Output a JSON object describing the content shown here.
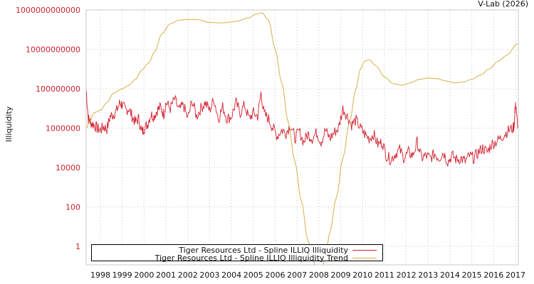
{
  "watermark": "V-Lab (2026)",
  "chart_data": {
    "type": "line",
    "title": "",
    "xlabel": "",
    "ylabel": "Illiquidity",
    "yscale": "log",
    "ylim": [
      0.1,
      1000000000000
    ],
    "xlim": [
      1997.35,
      2017.1
    ],
    "grid": true,
    "legend_position": "bottom-left inside",
    "x_ticks": [
      "1998",
      "1999",
      "2000",
      "2001",
      "2002",
      "2003",
      "2004",
      "2005",
      "2006",
      "2007",
      "2008",
      "2009",
      "2010",
      "2011",
      "2012",
      "2013",
      "2014",
      "2015",
      "2016",
      "2017"
    ],
    "y_ticks": [
      "1",
      "100",
      "10000",
      "1000000",
      "100000000",
      "10000000000",
      "1000000000000"
    ],
    "series": [
      {
        "name": "Tiger Resources Ltd - Spline ILLIQ Illiquidity",
        "color": "#d21f2e",
        "x": [
          1997.35,
          1997.45,
          1997.55,
          1997.7,
          1997.85,
          1998.0,
          1998.15,
          1998.3,
          1998.45,
          1998.6,
          1998.75,
          1998.9,
          1999.0,
          1999.15,
          1999.3,
          1999.45,
          1999.6,
          1999.75,
          1999.9,
          2000.0,
          2000.15,
          2000.3,
          2000.45,
          2000.6,
          2000.75,
          2000.9,
          2001.0,
          2001.2,
          2001.4,
          2001.6,
          2001.8,
          2002.0,
          2002.2,
          2002.4,
          2002.6,
          2002.8,
          2003.0,
          2003.2,
          2003.4,
          2003.6,
          2003.8,
          2004.0,
          2004.2,
          2004.4,
          2004.6,
          2004.8,
          2005.0,
          2005.2,
          2005.35,
          2005.5,
          2005.7,
          2005.9,
          2006.1,
          2006.3,
          2006.5,
          2006.7,
          2006.9,
          2007.1,
          2007.3,
          2007.5,
          2007.7,
          2007.9,
          2008.1,
          2008.3,
          2008.5,
          2008.7,
          2008.9,
          2009.1,
          2009.3,
          2009.5,
          2009.7,
          2009.9,
          2010.1,
          2010.3,
          2010.5,
          2010.7,
          2010.9,
          2011.1,
          2011.3,
          2011.5,
          2011.7,
          2011.9,
          2012.1,
          2012.3,
          2012.5,
          2012.7,
          2012.9,
          2013.1,
          2013.3,
          2013.5,
          2013.7,
          2013.9,
          2014.1,
          2014.3,
          2014.5,
          2014.7,
          2014.9,
          2015.1,
          2015.3,
          2015.5,
          2015.7,
          2015.9,
          2016.1,
          2016.3,
          2016.5,
          2016.7,
          2016.9,
          2016.95,
          2017.0,
          2017.1
        ],
        "y": [
          80000000,
          3000000,
          2000000,
          1500000,
          1000000,
          800000,
          1200000,
          900000,
          4000000,
          5000000,
          8000000,
          20000000,
          15000000,
          8000000,
          10000000,
          4000000,
          2000000,
          3000000,
          600000,
          1000000,
          1500000,
          5000000,
          4000000,
          8000000,
          12000000,
          5000000,
          20000000,
          10000000,
          30000000,
          8000000,
          15000000,
          3000000,
          25000000,
          4000000,
          10000000,
          20000000,
          8000000,
          30000000,
          3000000,
          12000000,
          3000000,
          4000000,
          20000000,
          6000000,
          15000000,
          3000000,
          6000000,
          4000000,
          60000000,
          5000000,
          3000000,
          1000000,
          400000,
          800000,
          600000,
          1500000,
          300000,
          700000,
          200000,
          500000,
          300000,
          600000,
          200000,
          800000,
          300000,
          600000,
          1000000,
          10000000,
          4000000,
          1500000,
          2500000,
          1000000,
          500000,
          300000,
          500000,
          150000,
          200000,
          40000,
          25000,
          50000,
          80000,
          30000,
          60000,
          40000,
          200000,
          30000,
          40000,
          30000,
          50000,
          30000,
          60000,
          20000,
          40000,
          25000,
          30000,
          20000,
          40000,
          30000,
          60000,
          100000,
          60000,
          150000,
          200000,
          300000,
          500000,
          800000,
          1000000,
          2000000,
          20000000,
          1000000
        ],
        "note": "approximate; dense noisy series read from image"
      },
      {
        "name": "Tiger Resources Ltd - Spline ILLIQ Illiquidity Trend",
        "color": "#d4b04a",
        "x": [
          1997.35,
          1997.5,
          1997.7,
          1998.0,
          1998.3,
          1998.6,
          1999.0,
          1999.3,
          1999.6,
          1999.9,
          2000.2,
          2000.5,
          2000.8,
          2001.2,
          2001.6,
          2002.0,
          2002.4,
          2003.0,
          2003.6,
          2004.2,
          2004.8,
          2005.1,
          2005.4,
          2005.7,
          2006.0,
          2006.3,
          2006.6,
          2006.9,
          2007.2,
          2007.5,
          2007.7,
          2007.9,
          2008.1,
          2008.3,
          2008.5,
          2008.8,
          2009.1,
          2009.4,
          2009.7,
          2009.9,
          2010.1,
          2010.3,
          2010.6,
          2011.0,
          2011.4,
          2011.8,
          2012.2,
          2012.6,
          2013.0,
          2013.4,
          2013.8,
          2014.2,
          2014.6,
          2015.0,
          2015.4,
          2015.8,
          2016.2,
          2016.6,
          2017.1
        ],
        "y": [
          1000000,
          2000000,
          6000000,
          8000000,
          20000000,
          60000000,
          100000000,
          150000000,
          300000000,
          900000000,
          2000000000,
          8000000000,
          60000000000,
          200000000000,
          300000000000,
          330000000000,
          330000000000,
          230000000000,
          220000000000,
          260000000000,
          400000000000,
          600000000000,
          700000000000,
          300000000000,
          10000000000,
          200000000,
          2000000,
          20000,
          200,
          2,
          0.3,
          0.05,
          0.05,
          0.3,
          5,
          300,
          30000,
          2000000,
          100000000,
          1000000000,
          2500000000,
          3000000000,
          1500000000,
          400000000,
          180000000,
          150000000,
          200000000,
          300000000,
          350000000,
          330000000,
          250000000,
          200000000,
          220000000,
          300000000,
          500000000,
          1000000000,
          2500000000,
          5000000000,
          20000000000
        ]
      }
    ]
  },
  "legend": {
    "items": [
      {
        "label": "Tiger Resources Ltd - Spline ILLIQ Illiquidity",
        "color": "#d21f2e"
      },
      {
        "label": "Tiger Resources Ltd - Spline ILLIQ Illiquidity Trend",
        "color": "#d4b04a"
      }
    ]
  }
}
